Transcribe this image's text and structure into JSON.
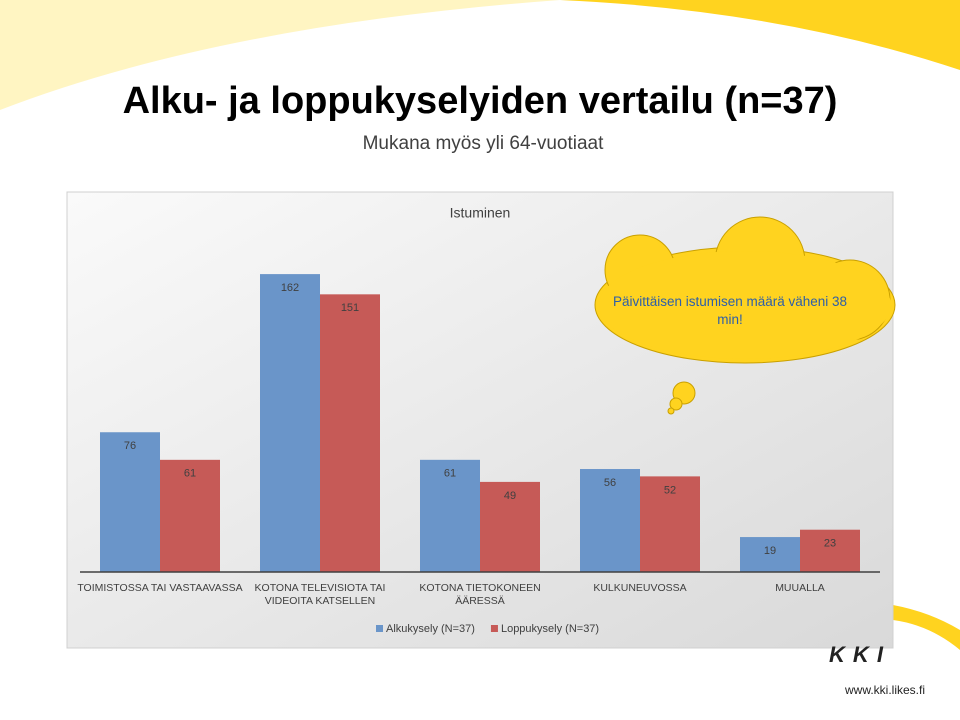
{
  "slide_title": "Alku- ja loppukyselyiden vertailu (n=37)",
  "slide_subtitle": "Mukana myös yli 64-vuotiaat",
  "logo": "KKI",
  "website": "www.kki.likes.fi",
  "chart_data": {
    "type": "bar",
    "title": "Istuminen",
    "categories": [
      "TOIMISTOSSA TAI VASTAAVASSA",
      "KOTONA TELEVISIOTA TAI VIDEOITA KATSELLEN",
      "KOTONA TIETOKONEEN ÄÄRESSÄ",
      "KULKUNEUVOSSA",
      "MUUALLA"
    ],
    "series": [
      {
        "name": "Alkukysely (N=37)",
        "color": "#6a95c9",
        "values": [
          76,
          162,
          61,
          56,
          19
        ]
      },
      {
        "name": "Loppukysely (N=37)",
        "color": "#c65a57",
        "values": [
          61,
          151,
          49,
          52,
          23
        ]
      }
    ],
    "ylim": [
      0,
      180
    ],
    "annotation": "Päivittäisen istumisen määrä väheni 38 min!"
  }
}
